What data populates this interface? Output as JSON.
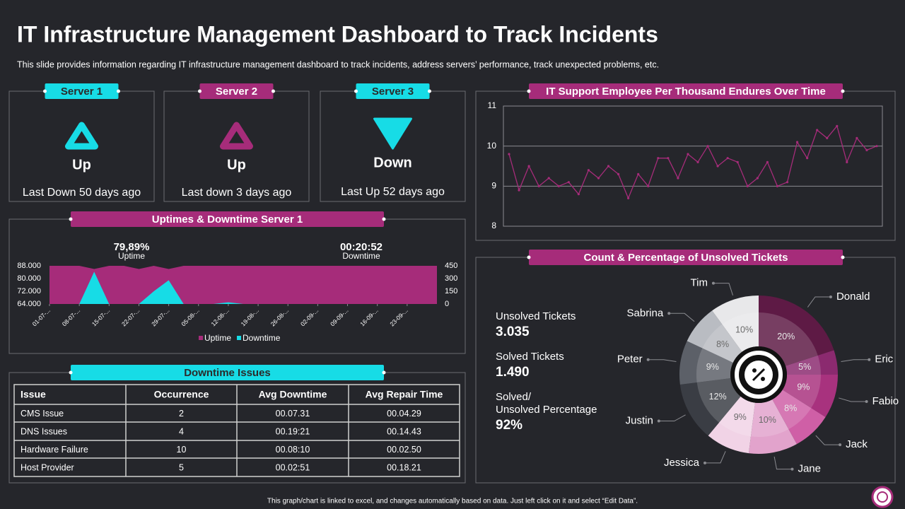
{
  "header": {
    "title": "IT Infrastructure Management Dashboard to Track Incidents",
    "subtitle": "This slide provides information regarding IT infrastructure management dashboard to track incidents, address servers’ performance, track unexpected problems, etc."
  },
  "servers": [
    {
      "name": "Server 1",
      "status": "Up",
      "note": "Last Down 50 days ago",
      "color": "#17dce6"
    },
    {
      "name": "Server 2",
      "status": "Up",
      "note": "Last down 3 days ago",
      "color": "#a62c7a"
    },
    {
      "name": "Server 3",
      "status": "Down",
      "note": "Last Up 52 days ago",
      "color": "#17dce6"
    }
  ],
  "chart_data": [
    {
      "type": "line",
      "title": "IT Support Employee Per Thousand Endures Over Time",
      "series": [
        {
          "color": "#a62c7a",
          "values": [
            9.8,
            8.9,
            9.5,
            9.0,
            9.2,
            9.0,
            9.1,
            8.8,
            9.4,
            9.2,
            9.5,
            9.3,
            8.7,
            9.3,
            9.0,
            9.7,
            9.7,
            9.2,
            9.8,
            9.6,
            10.0,
            9.5,
            9.7,
            9.6,
            9.0,
            9.2,
            9.6,
            9.0,
            9.1,
            10.1,
            9.7,
            10.4,
            10.2,
            10.5,
            9.6,
            10.2,
            9.9,
            10.0
          ]
        }
      ],
      "ylim": [
        8,
        11
      ],
      "yticks": [
        8,
        9,
        10,
        11
      ],
      "grid": true
    },
    {
      "type": "area",
      "title": "Uptimes & Downtime Server 1",
      "annotations": [
        {
          "value": "79,89%",
          "text": "Uptime"
        },
        {
          "value": "00:20:52",
          "text": "Downtime"
        }
      ],
      "categories": [
        "01-07-...",
        null,
        "08-07-...",
        null,
        "15-07-...",
        null,
        "22-07-...",
        null,
        "29-07-...",
        null,
        "05-08-...",
        null,
        "12-08-...",
        null,
        "19-08-...",
        null,
        "26-08-...",
        null,
        "02-09-...",
        null,
        "09-09-...",
        null,
        "16-09-...",
        null,
        "23-09-...",
        null,
        null
      ],
      "series": [
        {
          "name": "Uptime",
          "color": "#a62c7a",
          "values": [
            88,
            88,
            88,
            86,
            88,
            88,
            86,
            88,
            86,
            88,
            88,
            88,
            88,
            88,
            88,
            88,
            88,
            88,
            88,
            88,
            88,
            88,
            88,
            88,
            88,
            88,
            88
          ]
        },
        {
          "name": "Downtime",
          "color": "#17dce6",
          "axis": "y2",
          "values": [
            0,
            0,
            0,
            380,
            0,
            0,
            0,
            150,
            280,
            0,
            0,
            0,
            20,
            0,
            0,
            0,
            0,
            0,
            0,
            0,
            0,
            0,
            0,
            0,
            0,
            0,
            0
          ]
        }
      ],
      "ylim": [
        64,
        88
      ],
      "yticks": [
        {
          "value": 64,
          "label": "64.000"
        },
        {
          "value": 72,
          "label": "72.000"
        },
        {
          "value": 80,
          "label": "80.000"
        },
        {
          "value": 88,
          "label": "88.000"
        }
      ],
      "y2lim": [
        0,
        450
      ],
      "y2ticks": [
        0,
        150,
        300,
        450
      ],
      "legend": "bottom"
    },
    {
      "type": "pie",
      "title": "Count & Percentage of Unsolved Tickets",
      "categories": [
        "Donald",
        "Eric",
        "Fabio",
        "Jack",
        "Jane",
        "Jessica",
        "Justin",
        "Peter",
        "Sabrina",
        "Tim"
      ],
      "values": [
        20,
        5,
        9,
        8,
        10,
        9,
        12,
        9,
        8,
        10
      ],
      "value_labels": [
        "20%",
        "5%",
        "9%",
        "8%",
        "10%",
        "9%",
        "12%",
        "9%",
        "8%",
        "10%"
      ],
      "colors": [
        "#5e1a45",
        "#8b2a6f",
        "#a8327e",
        "#cf5fa6",
        "#e2a3cc",
        "#f1d3e6",
        "#3a3d44",
        "#5c6068",
        "#b9bcc2",
        "#e8e8ea"
      ]
    }
  ],
  "downtime_issues": {
    "title": "Downtime Issues",
    "columns": [
      "Issue",
      "Occurrence",
      "Avg Downtime",
      "Avg Repair Time"
    ],
    "rows": [
      [
        "CMS Issue",
        2,
        "00.07.31",
        "00.04.29"
      ],
      [
        "DNS Issues",
        4,
        "00.19:21",
        "00.14.43"
      ],
      [
        "Hardware  Failure",
        10,
        "00.08:10",
        "00.02.50"
      ],
      [
        "Host Provider",
        5,
        "00.02:51",
        "00.18.21"
      ]
    ]
  },
  "tickets": [
    {
      "label": [
        "Unsolved Tickets"
      ],
      "value": "3.035"
    },
    {
      "label": [
        "Solved Tickets"
      ],
      "value": "1.490"
    },
    {
      "label": [
        "Solved/",
        "Unsolved Percentage"
      ],
      "value": "92%"
    }
  ],
  "footer": "This graph/chart is linked to excel, and changes automatically based on data. Just left click on it and select “Edit Data”."
}
